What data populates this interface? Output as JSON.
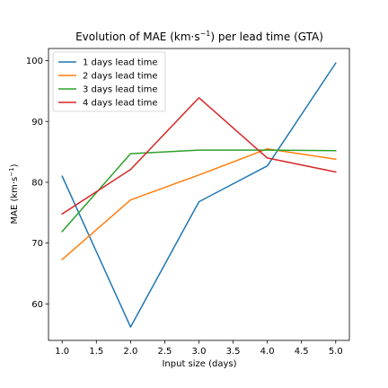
{
  "chart_data": {
    "type": "line",
    "title_main": "Evolution of MAE (km·s",
    "title_sup": "−1",
    "title_rest": ") per lead time (GTA)",
    "xlabel": "Input size (days)",
    "ylabel_main": "MAE (km·s",
    "ylabel_sup": "−1",
    "ylabel_rest": ")",
    "x": [
      1.0,
      2.0,
      3.0,
      4.0,
      5.0
    ],
    "xlim": [
      0.8,
      5.2
    ],
    "ylim": [
      54.0,
      102.0
    ],
    "xticks": [
      1.0,
      1.5,
      2.0,
      2.5,
      3.0,
      3.5,
      4.0,
      4.5,
      5.0
    ],
    "xtick_labels": [
      "1.0",
      "1.5",
      "2.0",
      "2.5",
      "3.0",
      "3.5",
      "4.0",
      "4.5",
      "5.0"
    ],
    "yticks": [
      60,
      70,
      80,
      90,
      100
    ],
    "ytick_labels": [
      "60",
      "70",
      "80",
      "90",
      "100"
    ],
    "legend_position": "top-left",
    "grid": false,
    "series": [
      {
        "name": "1 days lead time",
        "color": "#1f77b4",
        "values": [
          81.0,
          56.2,
          76.8,
          82.7,
          99.6
        ]
      },
      {
        "name": "2 days lead time",
        "color": "#ff7f0e",
        "values": [
          67.3,
          77.1,
          81.2,
          85.5,
          83.8
        ]
      },
      {
        "name": "3 days lead time",
        "color": "#2ca02c",
        "values": [
          71.9,
          84.7,
          85.3,
          85.3,
          85.2
        ]
      },
      {
        "name": "4 days lead time",
        "color": "#d62728",
        "values": [
          74.8,
          82.1,
          93.9,
          84.0,
          81.7
        ]
      }
    ]
  }
}
